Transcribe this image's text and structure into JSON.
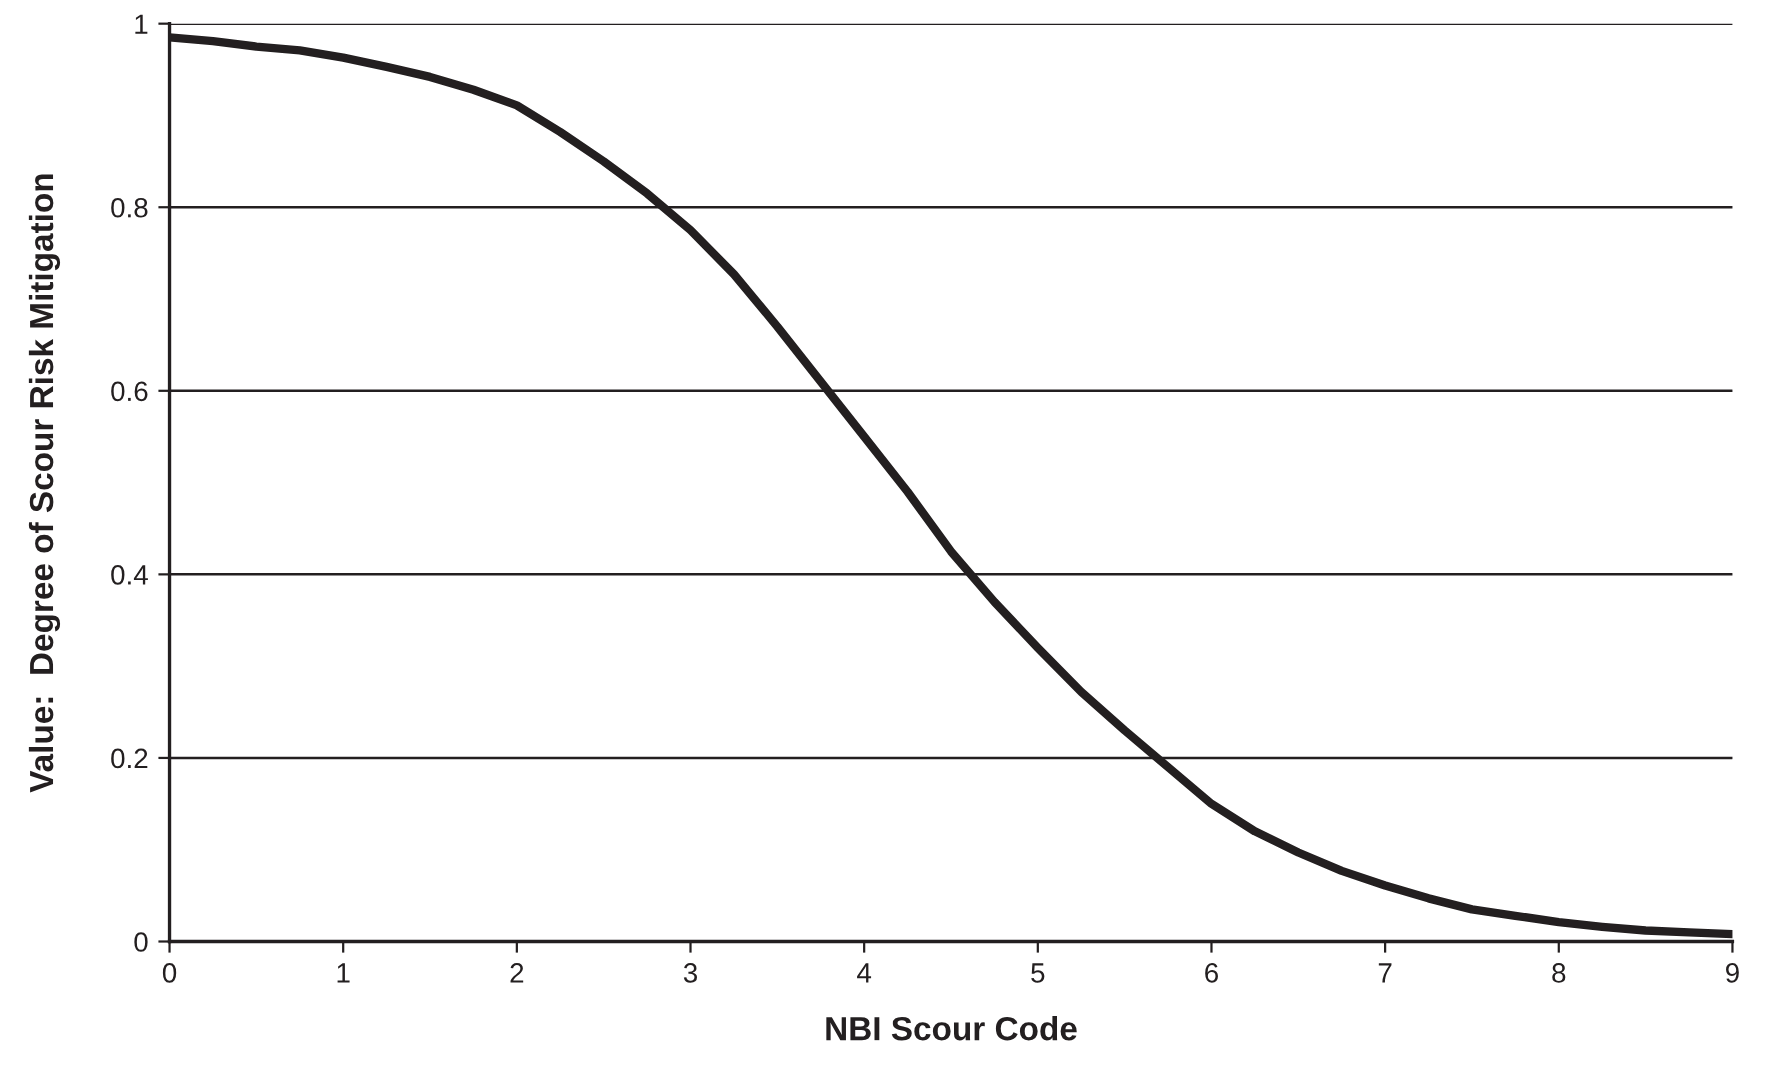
{
  "chart_data": {
    "type": "line",
    "xlabel": "NBI Scour Code",
    "ylabel": "Value:  Degree of Scour Risk Mitigation",
    "xlim": [
      0,
      9
    ],
    "xticks": [
      0,
      1,
      2,
      3,
      4,
      5,
      6,
      7,
      8,
      9
    ],
    "ylim": [
      0,
      1
    ],
    "yticks": [
      0,
      {
        "value": 0.2,
        "label": "0.2"
      },
      {
        "value": 0.4,
        "label": "0.4"
      },
      {
        "value": 0.6,
        "label": "0.6"
      },
      {
        "value": 0.8,
        "label": "0.8"
      },
      1
    ],
    "grid": "y",
    "line_style": "solid",
    "marker": "none",
    "series": [
      {
        "color": "#231f20",
        "x": [
          0,
          0.25,
          0.5,
          0.75,
          1,
          1.25,
          1.5,
          1.75,
          2,
          2.25,
          2.5,
          2.75,
          3,
          3.25,
          3.5,
          3.75,
          4,
          4.25,
          4.5,
          4.75,
          5,
          5.25,
          5.5,
          5.75,
          6,
          6.25,
          6.5,
          6.75,
          7,
          7.25,
          7.5,
          7.75,
          8,
          8.25,
          8.5,
          8.75,
          9
        ],
        "values": [
          0.985,
          0.981,
          0.975,
          0.971,
          0.963,
          0.953,
          0.942,
          0.928,
          0.911,
          0.882,
          0.85,
          0.815,
          0.775,
          0.727,
          0.67,
          0.61,
          0.55,
          0.49,
          0.425,
          0.37,
          0.32,
          0.272,
          0.23,
          0.19,
          0.15,
          0.12,
          0.097,
          0.077,
          0.061,
          0.047,
          0.035,
          0.028,
          0.021,
          0.016,
          0.012,
          0.01,
          0.008
        ]
      }
    ]
  }
}
